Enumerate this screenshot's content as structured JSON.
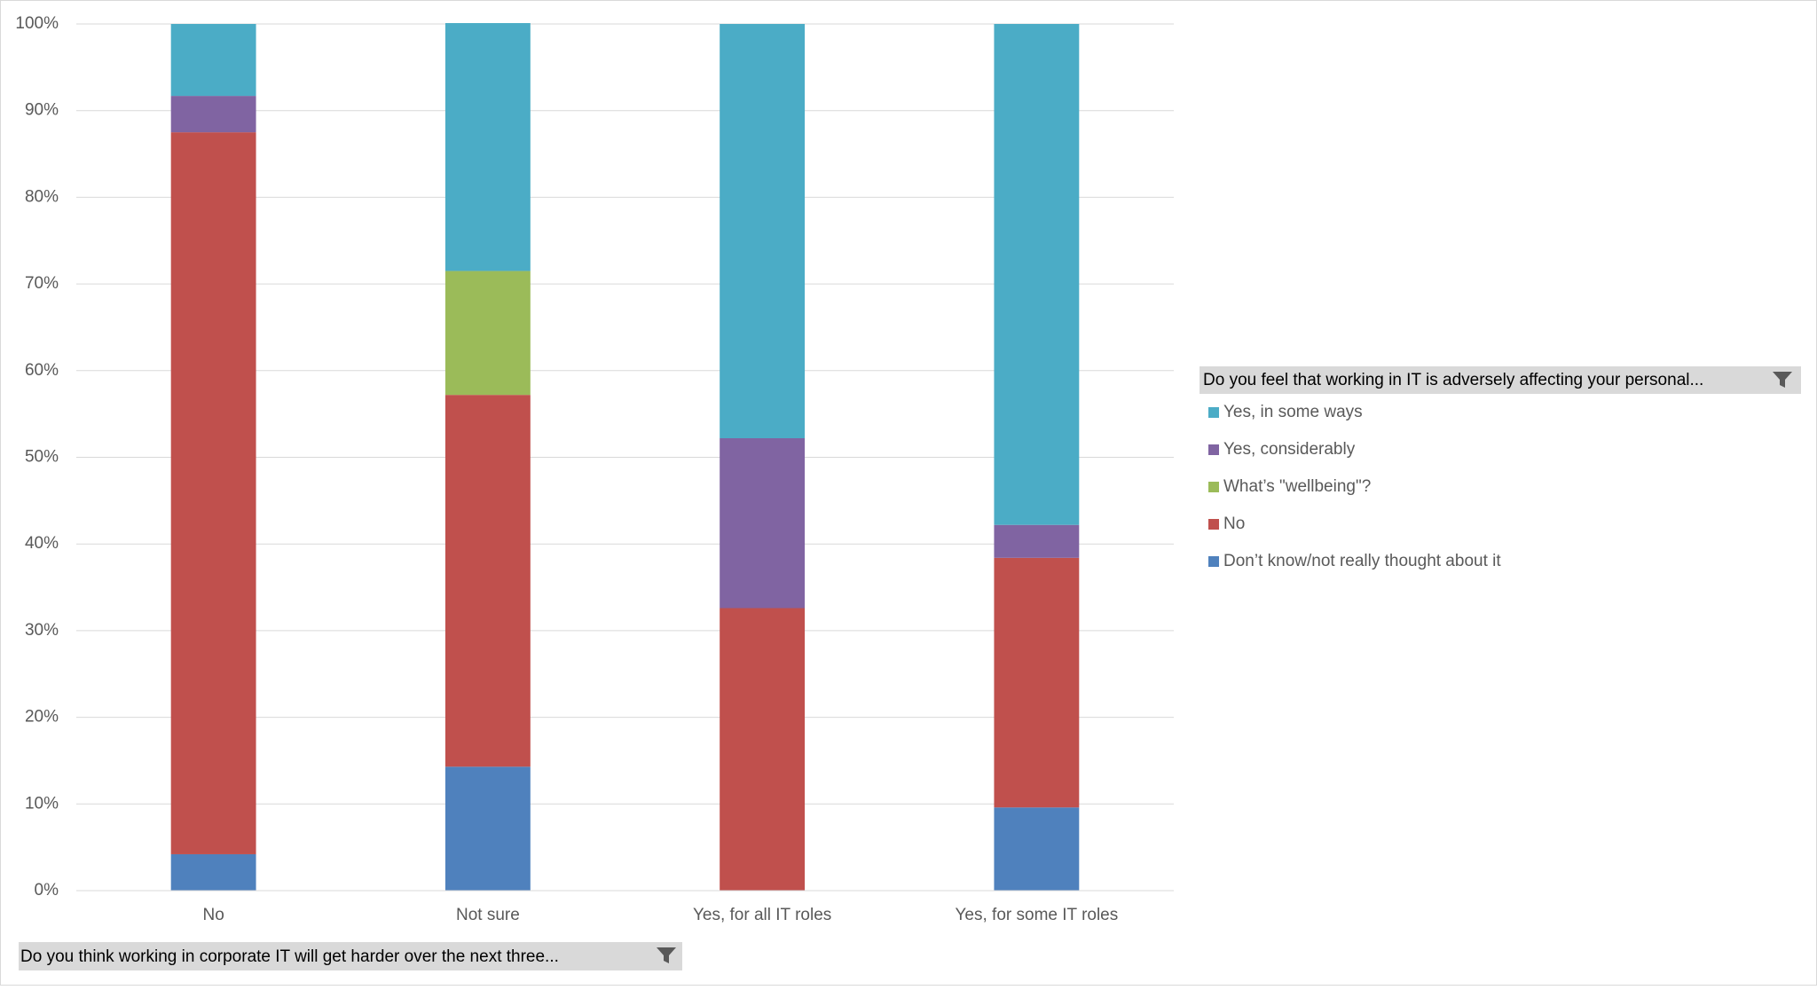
{
  "chart_data": {
    "type": "stacked_bar",
    "categories": [
      "No",
      "Not sure",
      "Yes, for all IT roles",
      "Yes, for some IT roles"
    ],
    "series": [
      {
        "name": "Don’t know/not really thought about it",
        "color": "#4f81bd",
        "values": [
          4.2,
          14.3,
          0,
          9.6
        ]
      },
      {
        "name": "No",
        "color": "#c0504d",
        "values": [
          83.3,
          42.9,
          32.6,
          28.8
        ]
      },
      {
        "name": "What’s \"wellbeing\"?",
        "color": "#9bbb59",
        "values": [
          0,
          14.3,
          0,
          0
        ]
      },
      {
        "name": "Yes, considerably",
        "color": "#8064a2",
        "values": [
          4.2,
          0,
          19.6,
          3.8
        ]
      },
      {
        "name": "Yes, in some ways",
        "color": "#4bacc6",
        "values": [
          8.3,
          28.6,
          47.8,
          57.8
        ]
      }
    ],
    "ylim": [
      0,
      100
    ],
    "yticks": [
      {
        "value": 0,
        "label": "0%"
      },
      {
        "value": 10,
        "label": "10%"
      },
      {
        "value": 20,
        "label": "20%"
      },
      {
        "value": 30,
        "label": "30%"
      },
      {
        "value": 40,
        "label": "40%"
      },
      {
        "value": 50,
        "label": "50%"
      },
      {
        "value": 60,
        "label": "60%"
      },
      {
        "value": 70,
        "label": "70%"
      },
      {
        "value": 80,
        "label": "80%"
      },
      {
        "value": 90,
        "label": "90%"
      },
      {
        "value": 100,
        "label": "100%"
      }
    ],
    "grid": true,
    "legend_title": "Do you feel that working in IT is adversely affecting your personal...",
    "x_field": "Do you think working in corporate IT will get harder over the next three..."
  }
}
